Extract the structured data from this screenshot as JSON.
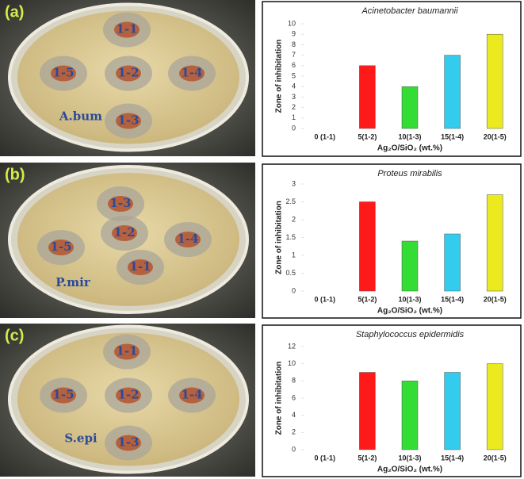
{
  "chart_data": [
    {
      "type": "bar",
      "title": "Acinetobacter baumannii",
      "y_label": "Zone of inhibitation",
      "x_label": "Ag₂O/SiO₂ (wt.%)",
      "categories": [
        "0 (1-1)",
        "5(1-2)",
        "10(1-3)",
        "15(1-4)",
        "20(1-5)"
      ],
      "values": [
        0,
        6,
        4,
        7,
        9
      ],
      "colors": [
        "#999999",
        "#ff1a1a",
        "#33dd33",
        "#33ccee",
        "#eaea1e"
      ],
      "ylim": [
        0,
        10
      ],
      "yticks": [
        0,
        1,
        2,
        3,
        4,
        5,
        6,
        7,
        8,
        9,
        10
      ]
    },
    {
      "type": "bar",
      "title": "Proteus mirabilis",
      "y_label": "Zone of inhibitation",
      "x_label": "Ag₂O/SiO₂ (wt.%)",
      "categories": [
        "0 (1-1)",
        "5(1-2)",
        "10(1-3)",
        "15(1-4)",
        "20(1-5)"
      ],
      "values": [
        0,
        2.5,
        1.4,
        1.6,
        2.7
      ],
      "colors": [
        "#999999",
        "#ff1a1a",
        "#33dd33",
        "#33ccee",
        "#eaea1e"
      ],
      "ylim": [
        0,
        3
      ],
      "yticks": [
        0,
        0.5,
        1,
        1.5,
        2,
        2.5,
        3
      ]
    },
    {
      "type": "bar",
      "title": "Staphylococcus epidermidis",
      "y_label": "Zone of inhibitation",
      "x_label": "Ag₂O/SiO₂ (wt.%)",
      "categories": [
        "0 (1-1)",
        "5(1-2)",
        "10(1-3)",
        "15(1-4)",
        "20(1-5)"
      ],
      "values": [
        0,
        9,
        8,
        9,
        10
      ],
      "colors": [
        "#999999",
        "#ff1a1a",
        "#33dd33",
        "#33ccee",
        "#eaea1e"
      ],
      "ylim": [
        0,
        12
      ],
      "yticks": [
        0,
        2,
        4,
        6,
        8,
        10,
        12
      ]
    }
  ],
  "panels": [
    {
      "label": "(a)",
      "plate_labels": [
        "1-1",
        "1-5",
        "1-2",
        "1-4",
        "A.bum",
        "1-3"
      ]
    },
    {
      "label": "(b)",
      "plate_labels": [
        "1-3",
        "1-2",
        "1-4",
        "1-5",
        "P.mir",
        "1-1"
      ]
    },
    {
      "label": "(c)",
      "plate_labels": [
        "1-1",
        "1-5",
        "1-2",
        "1-4",
        "S.epi",
        "1-3"
      ]
    }
  ]
}
